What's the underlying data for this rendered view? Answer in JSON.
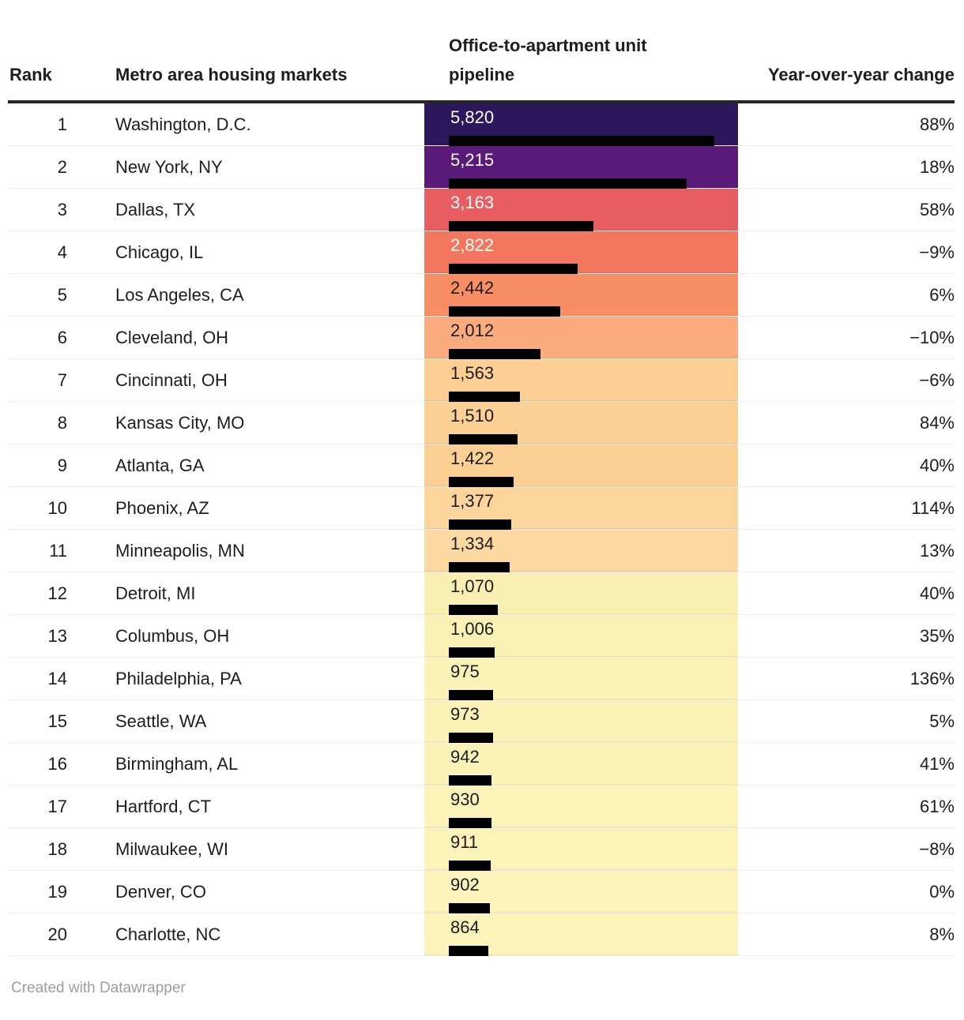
{
  "header": {
    "rank": "Rank",
    "market": "Metro area housing markets",
    "pipeline": "Office-to-apartment unit pipeline",
    "change": "Year-over-year change"
  },
  "footer": {
    "credit": "Created with Datawrapper"
  },
  "colors": {
    "bar": "#000000",
    "text_dark": "#1d1d1d",
    "text_light": "#ffffff",
    "header_rule": "#262626",
    "row_divider": "#ececec",
    "footer_text": "#9d9d9d"
  },
  "table": {
    "ranks": [
      "1",
      "2",
      "3",
      "4",
      "5",
      "6",
      "7",
      "8",
      "9",
      "10",
      "11",
      "12",
      "13",
      "14",
      "15",
      "16",
      "17",
      "18",
      "19",
      "20"
    ],
    "markets": [
      "Washington, D.C.",
      "New York, NY",
      "Dallas, TX",
      "Chicago, IL",
      "Los Angeles, CA",
      "Cleveland, OH",
      "Cincinnati, OH",
      "Kansas City, MO",
      "Atlanta, GA",
      "Phoenix, AZ",
      "Minneapolis, MN",
      "Detroit, MI",
      "Columbus, OH",
      "Philadelphia, PA",
      "Seattle, WA",
      "Birmingham, AL",
      "Hartford, CT",
      "Milwaukee, WI",
      "Denver, CO",
      "Charlotte, NC"
    ],
    "value_labels": [
      "5,820",
      "5,215",
      "3,163",
      "2,822",
      "2,442",
      "2,012",
      "1,563",
      "1,510",
      "1,422",
      "1,377",
      "1,334",
      "1,070",
      "1,006",
      "975",
      "973",
      "942",
      "930",
      "911",
      "902",
      "864"
    ],
    "change_labels": [
      "88%",
      "18%",
      "58%",
      "−9%",
      "6%",
      "−10%",
      "−6%",
      "84%",
      "40%",
      "114%",
      "13%",
      "40%",
      "35%",
      "136%",
      "5%",
      "41%",
      "61%",
      "−8%",
      "0%",
      "8%"
    ],
    "cell_colors": [
      "#2c165c",
      "#5b1a79",
      "#e85d5f",
      "#f3765f",
      "#f98e64",
      "#fbac7e",
      "#fcce91",
      "#fcd093",
      "#fcd093",
      "#fdd49b",
      "#fdd8a1",
      "#f9efb2",
      "#faf1b5",
      "#faf2b6",
      "#faf2b6",
      "#faf2b7",
      "#fbf3b8",
      "#fbf3b8",
      "#fbf3b9",
      "#fbf4ba"
    ],
    "value_text_colors": [
      "#ffffff",
      "#ffffff",
      "#ffffff",
      "#ffffff",
      "#1d1d1d",
      "#1d1d1d",
      "#1d1d1d",
      "#1d1d1d",
      "#1d1d1d",
      "#1d1d1d",
      "#1d1d1d",
      "#1d1d1d",
      "#1d1d1d",
      "#1d1d1d",
      "#1d1d1d",
      "#1d1d1d",
      "#1d1d1d",
      "#1d1d1d",
      "#1d1d1d",
      "#1d1d1d"
    ]
  },
  "chart_data": {
    "type": "bar",
    "title": "",
    "xlabel": "Office-to-apartment unit pipeline",
    "ylabel": "",
    "categories": [
      "Washington, D.C.",
      "New York, NY",
      "Dallas, TX",
      "Chicago, IL",
      "Los Angeles, CA",
      "Cleveland, OH",
      "Cincinnati, OH",
      "Kansas City, MO",
      "Atlanta, GA",
      "Phoenix, AZ",
      "Minneapolis, MN",
      "Detroit, MI",
      "Columbus, OH",
      "Philadelphia, PA",
      "Seattle, WA",
      "Birmingham, AL",
      "Hartford, CT",
      "Milwaukee, WI",
      "Denver, CO",
      "Charlotte, NC"
    ],
    "values": [
      5820,
      5215,
      3163,
      2822,
      2442,
      2012,
      1563,
      1510,
      1422,
      1377,
      1334,
      1070,
      1006,
      975,
      973,
      942,
      930,
      911,
      902,
      864
    ],
    "series": [
      {
        "name": "Office-to-apartment unit pipeline",
        "values": [
          5820,
          5215,
          3163,
          2822,
          2442,
          2012,
          1563,
          1510,
          1422,
          1377,
          1334,
          1070,
          1006,
          975,
          973,
          942,
          930,
          911,
          902,
          864
        ]
      },
      {
        "name": "Year-over-year change (%)",
        "values": [
          88,
          18,
          58,
          -9,
          6,
          -10,
          -6,
          84,
          40,
          114,
          13,
          40,
          35,
          136,
          5,
          41,
          61,
          -8,
          0,
          8
        ]
      }
    ],
    "xlim": [
      0,
      5820
    ],
    "grid": false,
    "legend_position": "none",
    "bar_color": "#000000",
    "cell_heat_colors": [
      "#2c165c",
      "#5b1a79",
      "#e85d5f",
      "#f3765f",
      "#f98e64",
      "#fbac7e",
      "#fcce91",
      "#fcd093",
      "#fcd093",
      "#fdd49b",
      "#fdd8a1",
      "#f9efb2",
      "#faf1b5",
      "#faf2b6",
      "#faf2b6",
      "#faf2b7",
      "#fbf3b8",
      "#fbf3b8",
      "#fbf3b9",
      "#fbf4ba"
    ]
  }
}
